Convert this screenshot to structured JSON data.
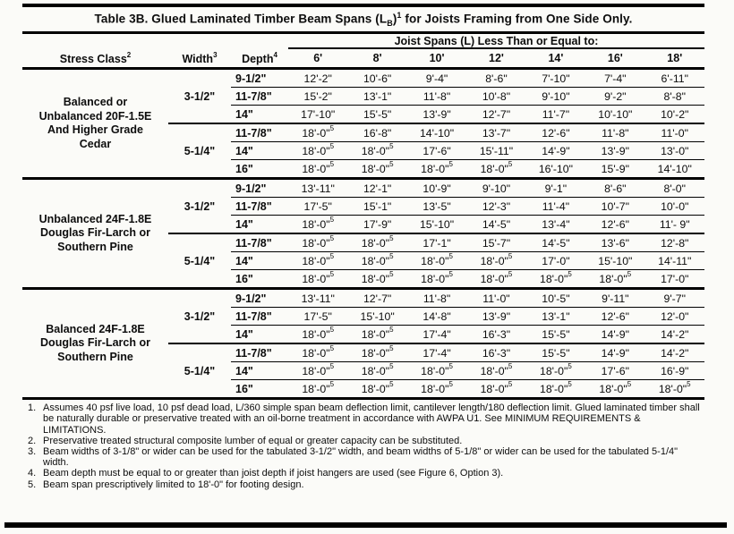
{
  "title": {
    "prefix": "Table 3B. Glued Laminated Timber Beam Spans (L",
    "sub": "B",
    "close": ")",
    "sup": "1",
    "suffix": " for Joists Framing from One Side Only."
  },
  "table": {
    "span_header": "Joist Spans (L) Less Than or Equal to:",
    "columns": {
      "stress_class": {
        "label": "Stress Class",
        "sup": "2"
      },
      "width": {
        "label": "Width",
        "sup": "3"
      },
      "depth": {
        "label": "Depth",
        "sup": "4"
      }
    },
    "span_columns": [
      "6'",
      "8'",
      "10'",
      "12'",
      "14'",
      "16'",
      "18'"
    ],
    "groups": [
      {
        "stress_class_lines": [
          "Balanced or",
          "Unbalanced 20F-1.5E",
          "And Higher Grade",
          "Cedar"
        ],
        "widths": [
          {
            "width": "3-1/2\"",
            "rows": [
              {
                "depth": "9-1/2\"",
                "values": [
                  "12'-2\"",
                  "10'-6\"",
                  "9'-4\"",
                  "8'-6\"",
                  "7'-10\"",
                  "7'-4\"",
                  "6'-11\""
                ]
              },
              {
                "depth": "11-7/8\"",
                "values": [
                  "15'-2\"",
                  "13'-1\"",
                  "11'-8\"",
                  "10'-8\"",
                  "9'-10\"",
                  "9'-2\"",
                  "8'-8\""
                ]
              },
              {
                "depth": "14\"",
                "values": [
                  "17'-10\"",
                  "15'-5\"",
                  "13'-9\"",
                  "12'-7\"",
                  "11'-7\"",
                  "10'-10\"",
                  "10'-2\""
                ]
              }
            ]
          },
          {
            "width": "5-1/4\"",
            "rows": [
              {
                "depth": "11-7/8\"",
                "values": [
                  "18'-0\"^5",
                  "16'-8\"",
                  "14'-10\"",
                  "13'-7\"",
                  "12'-6\"",
                  "11'-8\"",
                  "11'-0\""
                ]
              },
              {
                "depth": "14\"",
                "values": [
                  "18'-0\"^5",
                  "18'-0\"^5",
                  "17'-6\"",
                  "15'-11\"",
                  "14'-9\"",
                  "13'-9\"",
                  "13'-0\""
                ]
              },
              {
                "depth": "16\"",
                "values": [
                  "18'-0\"^5",
                  "18'-0\"^5",
                  "18'-0\"^5",
                  "18'-0\"^5",
                  "16'-10\"",
                  "15'-9\"",
                  "14'-10\""
                ]
              }
            ]
          }
        ]
      },
      {
        "stress_class_lines": [
          "Unbalanced 24F-1.8E",
          "Douglas Fir-Larch or",
          "Southern Pine"
        ],
        "widths": [
          {
            "width": "3-1/2\"",
            "rows": [
              {
                "depth": "9-1/2\"",
                "values": [
                  "13'-11\"",
                  "12'-1\"",
                  "10'-9\"",
                  "9'-10\"",
                  "9'-1\"",
                  "8'-6\"",
                  "8'-0\""
                ]
              },
              {
                "depth": "11-7/8\"",
                "values": [
                  "17'-5\"",
                  "15'-1\"",
                  "13'-5\"",
                  "12'-3\"",
                  "11'-4\"",
                  "10'-7\"",
                  "10'-0\""
                ]
              },
              {
                "depth": "14\"",
                "values": [
                  "18'-0\"^5",
                  "17'-9\"",
                  "15'-10\"",
                  "14'-5\"",
                  "13'-4\"",
                  "12'-6\"",
                  "11'- 9\""
                ]
              }
            ]
          },
          {
            "width": "5-1/4\"",
            "rows": [
              {
                "depth": "11-7/8\"",
                "values": [
                  "18'-0\"^5",
                  "18'-0\"^5",
                  "17'-1\"",
                  "15'-7\"",
                  "14'-5\"",
                  "13'-6\"",
                  "12'-8\""
                ]
              },
              {
                "depth": "14\"",
                "values": [
                  "18'-0\"^5",
                  "18'-0\"^5",
                  "18'-0\"^5",
                  "18'-0\"^5",
                  "17'-0\"",
                  "15'-10\"",
                  "14'-11\""
                ]
              },
              {
                "depth": "16\"",
                "values": [
                  "18'-0\"^5",
                  "18'-0\"^5",
                  "18'-0\"^5",
                  "18'-0\"^5",
                  "18'-0\"^5",
                  "18'-0\"^5",
                  "17'-0\""
                ]
              }
            ]
          }
        ]
      },
      {
        "stress_class_lines": [
          "Balanced 24F-1.8E",
          "Douglas Fir-Larch or",
          "Southern Pine"
        ],
        "widths": [
          {
            "width": "3-1/2\"",
            "rows": [
              {
                "depth": "9-1/2\"",
                "values": [
                  "13'-11\"",
                  "12'-7\"",
                  "11'-8\"",
                  "11'-0\"",
                  "10'-5\"",
                  "9'-11\"",
                  "9'-7\""
                ]
              },
              {
                "depth": "11-7/8\"",
                "values": [
                  "17'-5\"",
                  "15'-10\"",
                  "14'-8\"",
                  "13'-9\"",
                  "13'-1\"",
                  "12'-6\"",
                  "12'-0\""
                ]
              },
              {
                "depth": "14\"",
                "values": [
                  "18'-0\"^5",
                  "18'-0\"^5",
                  "17'-4\"",
                  "16'-3\"",
                  "15'-5\"",
                  "14'-9\"",
                  "14'-2\""
                ]
              }
            ]
          },
          {
            "width": "5-1/4\"",
            "rows": [
              {
                "depth": "11-7/8\"",
                "values": [
                  "18'-0\"^5",
                  "18'-0\"^5",
                  "17'-4\"",
                  "16'-3\"",
                  "15'-5\"",
                  "14'-9\"",
                  "14'-2\""
                ]
              },
              {
                "depth": "14\"",
                "values": [
                  "18'-0\"^5",
                  "18'-0\"^5",
                  "18'-0\"^5",
                  "18'-0\"^5",
                  "18'-0\"^5",
                  "17'-6\"",
                  "16'-9\""
                ]
              },
              {
                "depth": "16\"",
                "values": [
                  "18'-0\"^5",
                  "18'-0\"^5",
                  "18'-0\"^5",
                  "18'-0\"^5",
                  "18'-0\"^5",
                  "18'-0\"^5",
                  "18'-0\"^5"
                ]
              }
            ]
          }
        ]
      }
    ]
  },
  "footnotes": [
    {
      "num": "1.",
      "text": "Assumes 40 psf live load, 10 psf dead load, L/360 simple span beam deflection limit, cantilever length/180 deflection limit. Glued laminated timber shall be naturally durable or preservative treated with an oil-borne treatment in accordance with AWPA U1. See MINIMUM REQUIREMENTS & LIMITATIONS."
    },
    {
      "num": "2.",
      "text": "Preservative treated structural composite lumber of equal or greater capacity can be substituted."
    },
    {
      "num": "3.",
      "text": "Beam widths of 3-1/8\" or wider can be used for the tabulated 3-1/2\" width, and beam widths of 5-1/8\" or wider can be used for the tabulated 5-1/4\" width."
    },
    {
      "num": "4.",
      "text": "Beam depth must be equal to or greater than joist depth if joist hangers are used (see Figure 6, Option 3)."
    },
    {
      "num": "5.",
      "text": "Beam span prescriptively limited to 18'-0\" for footing design."
    }
  ],
  "colors": {
    "text": "#0d0d0d",
    "rule": "#000000",
    "page_bg": "#fbfbf8"
  }
}
